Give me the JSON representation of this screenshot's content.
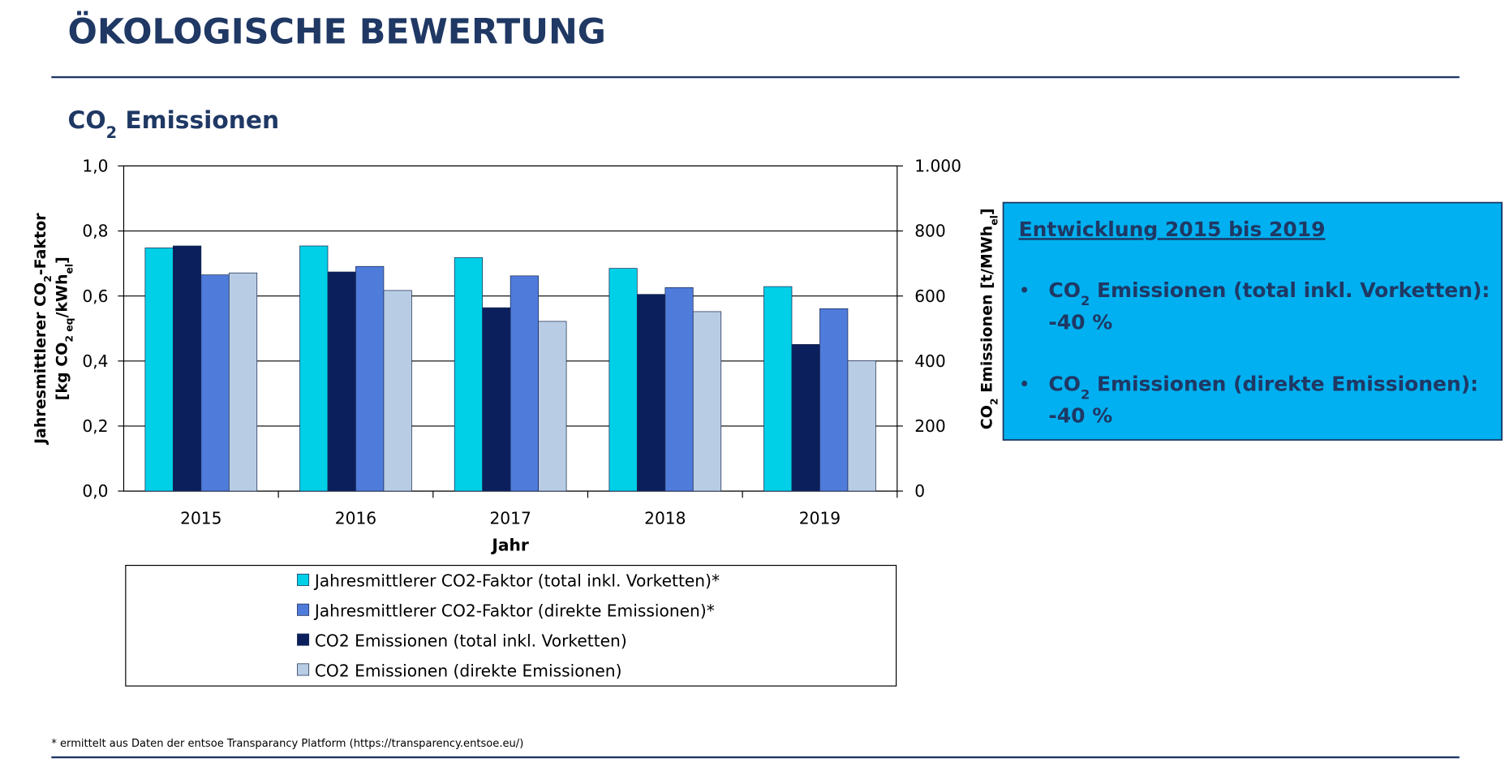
{
  "header": {
    "title": "ÖKOLOGISCHE BEWERTUNG",
    "subtitle": [
      "CO",
      "2",
      " Emissionen"
    ]
  },
  "chart_data": {
    "type": "bar",
    "categories": [
      "2015",
      "2016",
      "2017",
      "2018",
      "2019"
    ],
    "x_label": "Jahr",
    "y_label": [
      [
        "Jahresmittlerer CO",
        "2",
        "-Faktor"
      ],
      [
        "[kg CO",
        "2 eq",
        "/kWh",
        "el",
        "]"
      ]
    ],
    "y2_label": [
      "CO",
      "2",
      " Emissionen [t/MWh",
      "el",
      "]"
    ],
    "ylim": [
      0,
      1
    ],
    "yticks": [
      {
        "value": 0,
        "label": "0,0"
      },
      {
        "value": 0.2,
        "label": "0,2"
      },
      {
        "value": 0.4,
        "label": "0,4"
      },
      {
        "value": 0.6,
        "label": "0,6"
      },
      {
        "value": 0.8,
        "label": "0,8"
      },
      {
        "value": 1,
        "label": "1,0"
      }
    ],
    "y2lim": [
      0,
      1000
    ],
    "y2ticks": [
      0,
      200,
      400,
      600,
      800,
      {
        "value": 1000,
        "label": "1.000"
      }
    ],
    "grid": true,
    "series": [
      {
        "name": "Jahresmittlerer CO2-Faktor (total inkl. Vorketten)*",
        "color": "#00cfe8",
        "values": [
          0.748,
          0.754,
          0.718,
          0.685,
          0.629
        ]
      },
      {
        "name": "Jahresmittlerer CO2-Faktor (direkte Emissionen)*",
        "color": "#4f7bdb",
        "values": [
          0.665,
          0.691,
          0.662,
          0.626,
          0.561
        ]
      },
      {
        "name": "CO2 Emissionen (total inkl. Vorketten)",
        "color": "#0a1f5c",
        "axis": "y2",
        "values": [
          754,
          674,
          564,
          605,
          451
        ]
      },
      {
        "name": "CO2 Emissionen (direkte Emissionen)",
        "color": "#b8cce4",
        "axis": "y2",
        "values": [
          671,
          617,
          522,
          552,
          401
        ]
      }
    ]
  },
  "box": {
    "heading": "Entwicklung 2015 bis 2019",
    "items": [
      {
        "text": [
          "CO",
          "2",
          " Emissionen (total inkl. Vorketten):"
        ],
        "value": "-40 %"
      },
      {
        "text": [
          "CO",
          "2",
          " Emissionen (direkte Emissionen):"
        ],
        "value": "-40 %"
      }
    ]
  },
  "footnote": "* ermittelt aus Daten der entsoe Transparancy Platform (https://transparency.entsoe.eu/)"
}
